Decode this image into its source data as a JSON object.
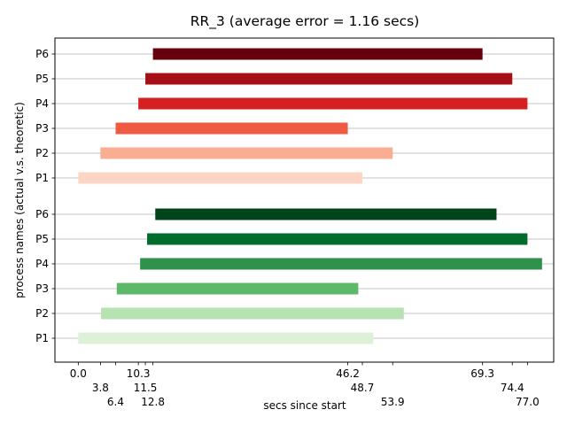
{
  "chart_data": {
    "type": "bar",
    "orientation": "horizontal",
    "title": "RR_3 (average error = 1.16 secs)",
    "xlabel": "secs since start",
    "ylabel": "process names (actual v.s. theoretic)",
    "grid": "horizontal",
    "xlim": [
      -4,
      81.5
    ],
    "x_ticks": [
      {
        "value": 0.0,
        "label": "0.0",
        "row": 0
      },
      {
        "value": 3.8,
        "label": "3.8",
        "row": 1
      },
      {
        "value": 6.4,
        "label": "6.4",
        "row": 2
      },
      {
        "value": 10.3,
        "label": "10.3",
        "row": 0
      },
      {
        "value": 11.5,
        "label": "11.5",
        "row": 1
      },
      {
        "value": 12.8,
        "label": "12.8",
        "row": 2
      },
      {
        "value": 46.2,
        "label": "46.2",
        "row": 0
      },
      {
        "value": 48.7,
        "label": "48.7",
        "row": 1
      },
      {
        "value": 53.9,
        "label": "53.9",
        "row": 2
      },
      {
        "value": 69.3,
        "label": "69.3",
        "row": 0
      },
      {
        "value": 74.4,
        "label": "74.4",
        "row": 1
      },
      {
        "value": 77.0,
        "label": "77.0",
        "row": 2
      }
    ],
    "groups": [
      {
        "bars": [
          {
            "label": "P6",
            "start": 12.8,
            "end": 69.3,
            "color": "#67000d"
          },
          {
            "label": "P5",
            "start": 11.5,
            "end": 74.4,
            "color": "#a50f15"
          },
          {
            "label": "P4",
            "start": 10.3,
            "end": 77.0,
            "color": "#d42020"
          },
          {
            "label": "P3",
            "start": 6.4,
            "end": 46.2,
            "color": "#ef5a42"
          },
          {
            "label": "P2",
            "start": 3.8,
            "end": 53.9,
            "color": "#f9ae92"
          },
          {
            "label": "P1",
            "start": 0.0,
            "end": 48.7,
            "color": "#fdd5c5"
          }
        ]
      },
      {
        "bars": [
          {
            "label": "P6",
            "start": 13.2,
            "end": 71.7,
            "color": "#00441b"
          },
          {
            "label": "P5",
            "start": 11.8,
            "end": 77.0,
            "color": "#006d2c"
          },
          {
            "label": "P4",
            "start": 10.6,
            "end": 79.5,
            "color": "#2e924c"
          },
          {
            "label": "P3",
            "start": 6.6,
            "end": 48.0,
            "color": "#5db86a"
          },
          {
            "label": "P2",
            "start": 3.9,
            "end": 55.8,
            "color": "#b7e2b1"
          },
          {
            "label": "P1",
            "start": 0.0,
            "end": 50.6,
            "color": "#ddf1d8"
          }
        ]
      }
    ]
  }
}
